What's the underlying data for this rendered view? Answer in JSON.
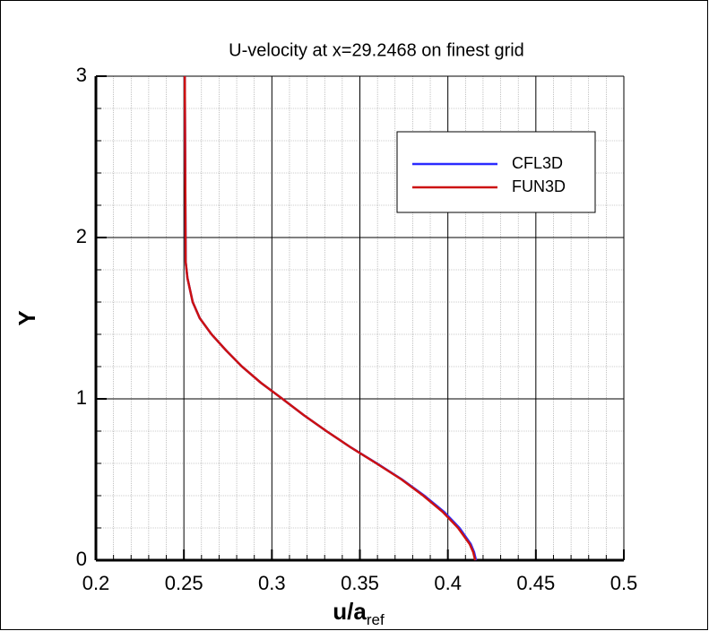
{
  "chart_data": {
    "type": "line",
    "title": "U-velocity at x=29.2468 on finest grid",
    "xlabel": "u/a",
    "xlabel_subscript": "ref",
    "ylabel": "Y",
    "xlim": [
      0.2,
      0.5
    ],
    "xticks": [
      0.2,
      0.25,
      0.3,
      0.35,
      0.4,
      0.45,
      0.5
    ],
    "ylim": [
      0,
      3
    ],
    "yticks": [
      0,
      1,
      2,
      3
    ],
    "grid": true,
    "minor_grid": true,
    "legend": "upper-right",
    "series": [
      {
        "name": "CFL3D",
        "color": "#2b2bff",
        "x": [
          0.2505,
          0.251,
          0.252,
          0.255,
          0.259,
          0.2657,
          0.274,
          0.283,
          0.2937,
          0.306,
          0.318,
          0.331,
          0.3447,
          0.3596,
          0.374,
          0.3866,
          0.3978,
          0.4066,
          0.413,
          0.4149,
          0.416
        ],
        "values": [
          3,
          1.85,
          1.75,
          1.6,
          1.5,
          1.4,
          1.3,
          1.2,
          1.1,
          1.0,
          0.9,
          0.8,
          0.7,
          0.6,
          0.5,
          0.4,
          0.3,
          0.2,
          0.1,
          0.05,
          0
        ]
      },
      {
        "name": "FUN3D",
        "color": "#cc1111",
        "x": [
          0.2505,
          0.251,
          0.252,
          0.255,
          0.259,
          0.2657,
          0.274,
          0.283,
          0.2937,
          0.306,
          0.318,
          0.331,
          0.3447,
          0.3594,
          0.3737,
          0.386,
          0.397,
          0.4058,
          0.4124,
          0.4144,
          0.4155
        ],
        "values": [
          3,
          1.85,
          1.75,
          1.6,
          1.5,
          1.4,
          1.3,
          1.2,
          1.1,
          1.0,
          0.9,
          0.8,
          0.7,
          0.6,
          0.5,
          0.4,
          0.3,
          0.2,
          0.1,
          0.05,
          0
        ]
      }
    ]
  }
}
